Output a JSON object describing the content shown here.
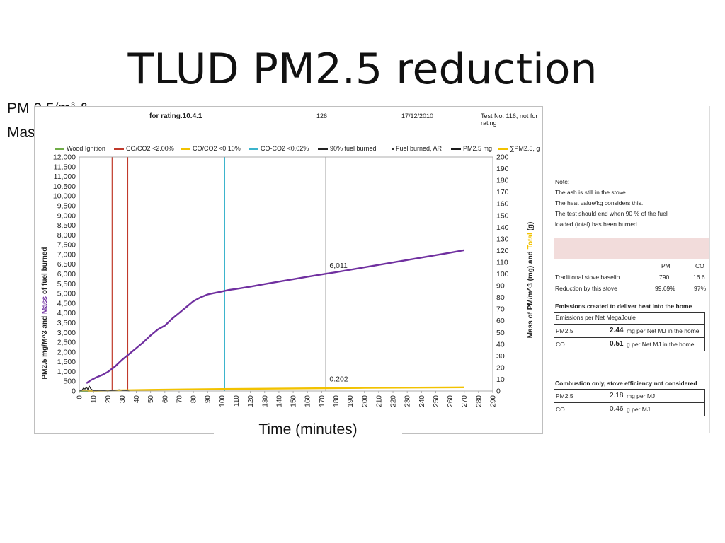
{
  "slide": {
    "title": "TLUD PM2.5 reduction",
    "side_label_line1": "PM 2.5/m",
    "side_label_sup": "3",
    "side_label_line1_tail": " &",
    "side_label_line2": "Mass burned",
    "time_label": "Time (minutes)"
  },
  "chart_header": {
    "rating": "for rating.10.4.1",
    "number": "126",
    "date": "17/12/2010",
    "test": "Test No. 116, not for rating"
  },
  "legend": {
    "wood_ignition": "Wood Ignition",
    "co_co2_200": "CO/CO2 <2.00%",
    "co_co2_010": "CO/CO2 <0.10%",
    "co_co2_002": "CO-CO2 <0.02%",
    "fuel_90": "90% fuel burned",
    "fuel_burned_ar": "Fuel burned, AR",
    "pm25_mg": "PM2.5 mg",
    "sum_pm25": "∑PM2.5, g"
  },
  "colors": {
    "wood_ignition": "#70ad47",
    "co_co2_200": "#c0392b",
    "co_co2_010": "#f2c200",
    "co_co2_002": "#3cb4cc",
    "fuel_90": "#222222",
    "fuel_burned": "#7030a0",
    "pm25": "#1a1a1a",
    "sum_pm25": "#f2c200",
    "pink_band": "#f2dcdb"
  },
  "chart_data": {
    "type": "line",
    "xlabel": "Time (minutes)",
    "ylabel_left_part1": "PM2.5 mg/M^3  and ",
    "ylabel_left_part2": "Mass",
    "ylabel_left_part3": " of fuel burned",
    "ylabel_right_part1": "Mass of PM/m^3 (mg)  and ",
    "ylabel_right_part2": "Total",
    "ylabel_right_part3": " (g)",
    "xlim": [
      0,
      290
    ],
    "ylim_left": [
      0,
      12000
    ],
    "ylim_right": [
      0,
      200
    ],
    "x_ticks": [
      "0",
      "10",
      "20",
      "30",
      "40",
      "50",
      "60",
      "70",
      "80",
      "90",
      "100",
      "110",
      "120",
      "130",
      "140",
      "150",
      "160",
      "170",
      "180",
      "190",
      "200",
      "210",
      "220",
      "230",
      "240",
      "250",
      "260",
      "270",
      "280",
      "290"
    ],
    "y_left_ticks": [
      "0",
      "500",
      "1,000",
      "1,500",
      "2,000",
      "2,500",
      "3,000",
      "3,500",
      "4,000",
      "4,500",
      "5,000",
      "5,500",
      "6,000",
      "6,500",
      "7,000",
      "7,500",
      "8,000",
      "8,500",
      "9,000",
      "9,500",
      "10,000",
      "10,500",
      "11,000",
      "11,500",
      "12,000"
    ],
    "y_right_ticks": [
      "0",
      "10",
      "20",
      "30",
      "40",
      "50",
      "60",
      "70",
      "80",
      "90",
      "100",
      "110",
      "120",
      "130",
      "140",
      "150",
      "160",
      "170",
      "180",
      "190",
      "200"
    ],
    "vertical_markers": [
      {
        "series": "CO/CO2 <2.00%",
        "x": 23
      },
      {
        "series": "CO/CO2 <2.00%",
        "x": 34
      },
      {
        "series": "CO-CO2 <0.02%",
        "x": 102
      },
      {
        "series": "90% fuel burned",
        "x": 173
      }
    ],
    "series": [
      {
        "name": "Fuel burned, AR",
        "axis": "left",
        "x": [
          5,
          8,
          12,
          16,
          20,
          25,
          30,
          35,
          40,
          45,
          50,
          55,
          60,
          65,
          70,
          75,
          80,
          85,
          90,
          95,
          100,
          105,
          110,
          120,
          130,
          140,
          150,
          160,
          173,
          180,
          200,
          220,
          240,
          260,
          270
        ],
        "values": [
          400,
          550,
          700,
          820,
          980,
          1250,
          1600,
          1900,
          2200,
          2500,
          2850,
          3150,
          3350,
          3700,
          4000,
          4300,
          4600,
          4800,
          4950,
          5030,
          5100,
          5180,
          5230,
          5350,
          5480,
          5610,
          5730,
          5860,
          6011,
          6090,
          6340,
          6590,
          6840,
          7090,
          7220
        ]
      },
      {
        "name": "∑PM2.5, g",
        "axis": "left",
        "x": [
          0,
          50,
          100,
          150,
          200,
          270
        ],
        "values": [
          0,
          60,
          100,
          130,
          160,
          190
        ]
      },
      {
        "name": "PM2.5 mg",
        "axis": "left",
        "x": [
          0,
          2,
          3,
          4,
          5,
          6,
          7,
          8,
          9,
          10,
          12,
          14,
          20,
          28,
          35
        ],
        "values": [
          0,
          50,
          150,
          100,
          200,
          80,
          250,
          120,
          60,
          30,
          10,
          40,
          0,
          60,
          0
        ]
      }
    ],
    "annotations": [
      {
        "text": "6,011",
        "x": 173,
        "y_left": 6011
      },
      {
        "text": "0.202",
        "x": 173,
        "y_left": 202
      }
    ]
  },
  "notes": {
    "title": "Note:",
    "line1": "The ash is still in the stove.",
    "line2": "The heat value/kg considers this.",
    "line3": "The test should end when 90 % of the fuel",
    "line4": "loaded (total) has been burned."
  },
  "comparison": {
    "col_pm": "PM",
    "col_co": "CO",
    "row1_label": "Traditional stove baselin",
    "row1_pm": "790",
    "row1_co": "16.6",
    "row2_label": "Reduction by this stove",
    "row2_pm": "99.69%",
    "row2_co": "97%"
  },
  "emissions_home": {
    "title": "Emissions created to deliver heat into the home",
    "subtitle": "Emissions per Net MegaJoule",
    "pm_label": "PM2.5",
    "pm_value": "2.44",
    "pm_unit": "mg per Net MJ in the home",
    "co_label": "CO",
    "co_value": "0.51",
    "co_unit": "g per Net MJ in the home"
  },
  "combustion": {
    "title": "Combustion only, stove efficiency not considered",
    "pm_label": "PM2.5",
    "pm_value": "2.18",
    "pm_unit": "mg per MJ",
    "co_label": "CO",
    "co_value": "0.46",
    "co_unit": "g per MJ"
  }
}
